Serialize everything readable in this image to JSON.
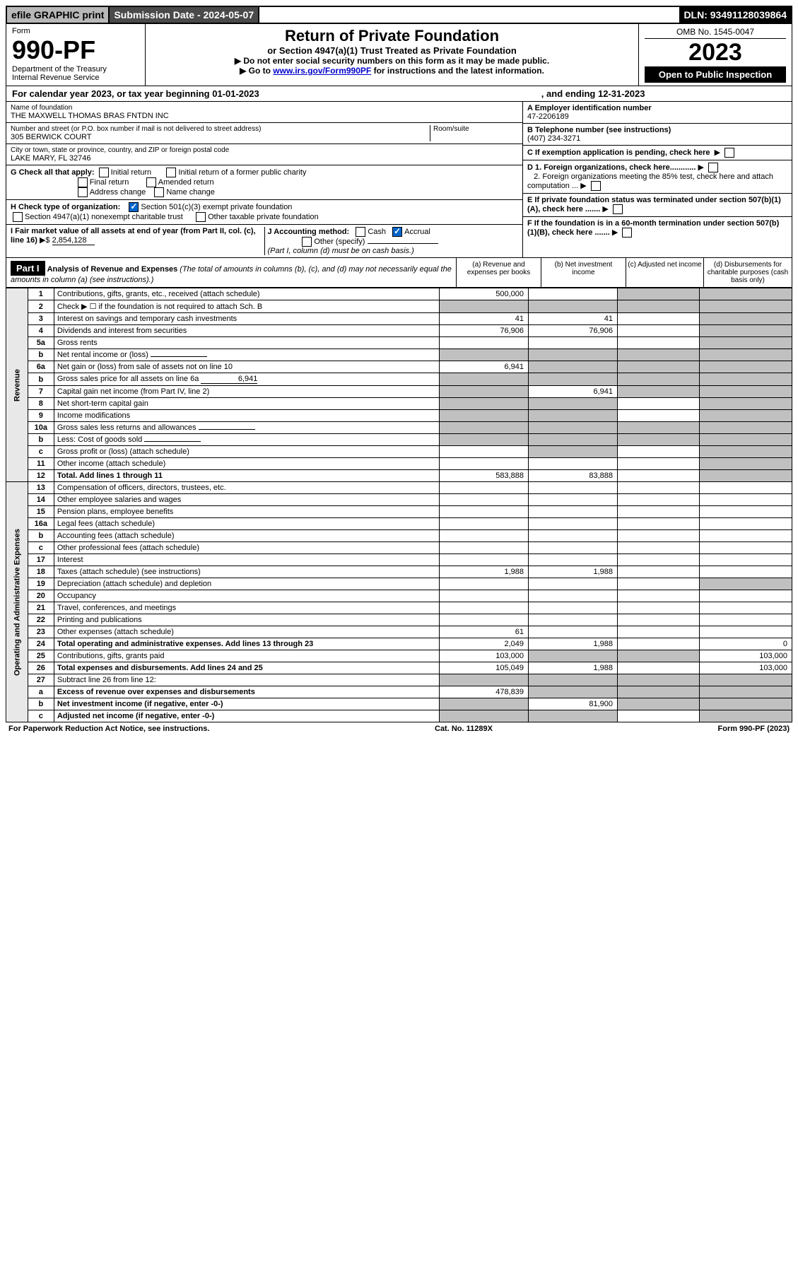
{
  "top": {
    "efile": "efile GRAPHIC print",
    "submission_label": "Submission Date - 2024-05-07",
    "dln": "DLN: 93491128039864"
  },
  "header": {
    "form_label": "Form",
    "form_number": "990-PF",
    "dept": "Department of the Treasury",
    "irs": "Internal Revenue Service",
    "title": "Return of Private Foundation",
    "subtitle": "or Section 4947(a)(1) Trust Treated as Private Foundation",
    "instr1": "▶ Do not enter social security numbers on this form as it may be made public.",
    "instr2_pre": "▶ Go to ",
    "instr2_link": "www.irs.gov/Form990PF",
    "instr2_post": " for instructions and the latest information.",
    "omb": "OMB No. 1545-0047",
    "year": "2023",
    "open": "Open to Public Inspection"
  },
  "cal_year": {
    "text_left": "For calendar year 2023, or tax year beginning 01-01-2023",
    "text_right": ", and ending 12-31-2023"
  },
  "info": {
    "name_label": "Name of foundation",
    "name": "THE MAXWELL THOMAS BRAS FNTDN INC",
    "addr_label": "Number and street (or P.O. box number if mail is not delivered to street address)",
    "addr": "305 BERWICK COURT",
    "room_label": "Room/suite",
    "city_label": "City or town, state or province, country, and ZIP or foreign postal code",
    "city": "LAKE MARY, FL  32746",
    "ein_label": "A Employer identification number",
    "ein": "47-2206189",
    "tel_label": "B Telephone number (see instructions)",
    "tel": "(407) 234-3271",
    "c_label": "C If exemption application is pending, check here",
    "g_label": "G Check all that apply:",
    "g_opts": [
      "Initial return",
      "Final return",
      "Address change",
      "Initial return of a former public charity",
      "Amended return",
      "Name change"
    ],
    "d1": "D 1. Foreign organizations, check here............",
    "d2": "2. Foreign organizations meeting the 85% test, check here and attach computation ...",
    "h_label": "H Check type of organization:",
    "h1": "Section 501(c)(3) exempt private foundation",
    "h2": "Section 4947(a)(1) nonexempt charitable trust",
    "h3": "Other taxable private foundation",
    "e_label": "E If private foundation status was terminated under section 507(b)(1)(A), check here .......",
    "i_label": "I Fair market value of all assets at end of year (from Part II, col. (c), line 16)",
    "i_val": "2,854,128",
    "j_label": "J Accounting method:",
    "j_cash": "Cash",
    "j_accrual": "Accrual",
    "j_other": "Other (specify)",
    "j_note": "(Part I, column (d) must be on cash basis.)",
    "f_label": "F If the foundation is in a 60-month termination under section 507(b)(1)(B), check here ......."
  },
  "part1": {
    "label": "Part I",
    "title": "Analysis of Revenue and Expenses",
    "note": "(The total of amounts in columns (b), (c), and (d) may not necessarily equal the amounts in column (a) (see instructions).)",
    "col_a": "(a) Revenue and expenses per books",
    "col_b": "(b) Net investment income",
    "col_c": "(c) Adjusted net income",
    "col_d": "(d) Disbursements for charitable purposes (cash basis only)"
  },
  "side_labels": {
    "revenue": "Revenue",
    "expenses": "Operating and Administrative Expenses"
  },
  "rows": [
    {
      "n": "1",
      "desc": "Contributions, gifts, grants, etc., received (attach schedule)",
      "a": "500,000",
      "b": "",
      "c": "",
      "d": "",
      "grey_b": false,
      "grey_c": true,
      "grey_d": true
    },
    {
      "n": "2",
      "desc": "Check ▶ ☐ if the foundation is not required to attach Sch. B",
      "a": "",
      "b": "",
      "c": "",
      "d": "",
      "grey_a": true,
      "grey_b": true,
      "grey_c": true,
      "grey_d": true
    },
    {
      "n": "3",
      "desc": "Interest on savings and temporary cash investments",
      "a": "41",
      "b": "41",
      "c": "",
      "d": "",
      "grey_d": true
    },
    {
      "n": "4",
      "desc": "Dividends and interest from securities",
      "a": "76,906",
      "b": "76,906",
      "c": "",
      "d": "",
      "grey_d": true
    },
    {
      "n": "5a",
      "desc": "Gross rents",
      "a": "",
      "b": "",
      "c": "",
      "d": "",
      "grey_d": true
    },
    {
      "n": "b",
      "desc": "Net rental income or (loss)",
      "a": "",
      "b": "",
      "c": "",
      "d": "",
      "grey_a": true,
      "grey_b": true,
      "grey_c": true,
      "grey_d": true,
      "inline_field": true
    },
    {
      "n": "6a",
      "desc": "Net gain or (loss) from sale of assets not on line 10",
      "a": "6,941",
      "b": "",
      "c": "",
      "d": "",
      "grey_b": true,
      "grey_c": true,
      "grey_d": true
    },
    {
      "n": "b",
      "desc": "Gross sales price for all assets on line 6a",
      "a": "",
      "b": "",
      "c": "",
      "d": "",
      "grey_a": true,
      "grey_b": true,
      "grey_c": true,
      "grey_d": true,
      "inline_val": "6,941"
    },
    {
      "n": "7",
      "desc": "Capital gain net income (from Part IV, line 2)",
      "a": "",
      "b": "6,941",
      "c": "",
      "d": "",
      "grey_a": true,
      "grey_c": true,
      "grey_d": true
    },
    {
      "n": "8",
      "desc": "Net short-term capital gain",
      "a": "",
      "b": "",
      "c": "",
      "d": "",
      "grey_a": true,
      "grey_b": true,
      "grey_d": true
    },
    {
      "n": "9",
      "desc": "Income modifications",
      "a": "",
      "b": "",
      "c": "",
      "d": "",
      "grey_a": true,
      "grey_b": true,
      "grey_d": true
    },
    {
      "n": "10a",
      "desc": "Gross sales less returns and allowances",
      "a": "",
      "b": "",
      "c": "",
      "d": "",
      "grey_a": true,
      "grey_b": true,
      "grey_c": true,
      "grey_d": true,
      "inline_field": true
    },
    {
      "n": "b",
      "desc": "Less: Cost of goods sold",
      "a": "",
      "b": "",
      "c": "",
      "d": "",
      "grey_a": true,
      "grey_b": true,
      "grey_c": true,
      "grey_d": true,
      "inline_field": true
    },
    {
      "n": "c",
      "desc": "Gross profit or (loss) (attach schedule)",
      "a": "",
      "b": "",
      "c": "",
      "d": "",
      "grey_b": true,
      "grey_d": true
    },
    {
      "n": "11",
      "desc": "Other income (attach schedule)",
      "a": "",
      "b": "",
      "c": "",
      "d": "",
      "grey_d": true
    },
    {
      "n": "12",
      "desc": "Total. Add lines 1 through 11",
      "a": "583,888",
      "b": "83,888",
      "c": "",
      "d": "",
      "bold": true,
      "grey_d": true
    },
    {
      "n": "13",
      "desc": "Compensation of officers, directors, trustees, etc.",
      "a": "",
      "b": "",
      "c": "",
      "d": ""
    },
    {
      "n": "14",
      "desc": "Other employee salaries and wages",
      "a": "",
      "b": "",
      "c": "",
      "d": ""
    },
    {
      "n": "15",
      "desc": "Pension plans, employee benefits",
      "a": "",
      "b": "",
      "c": "",
      "d": ""
    },
    {
      "n": "16a",
      "desc": "Legal fees (attach schedule)",
      "a": "",
      "b": "",
      "c": "",
      "d": ""
    },
    {
      "n": "b",
      "desc": "Accounting fees (attach schedule)",
      "a": "",
      "b": "",
      "c": "",
      "d": ""
    },
    {
      "n": "c",
      "desc": "Other professional fees (attach schedule)",
      "a": "",
      "b": "",
      "c": "",
      "d": ""
    },
    {
      "n": "17",
      "desc": "Interest",
      "a": "",
      "b": "",
      "c": "",
      "d": ""
    },
    {
      "n": "18",
      "desc": "Taxes (attach schedule) (see instructions)",
      "a": "1,988",
      "b": "1,988",
      "c": "",
      "d": ""
    },
    {
      "n": "19",
      "desc": "Depreciation (attach schedule) and depletion",
      "a": "",
      "b": "",
      "c": "",
      "d": "",
      "grey_d": true
    },
    {
      "n": "20",
      "desc": "Occupancy",
      "a": "",
      "b": "",
      "c": "",
      "d": ""
    },
    {
      "n": "21",
      "desc": "Travel, conferences, and meetings",
      "a": "",
      "b": "",
      "c": "",
      "d": ""
    },
    {
      "n": "22",
      "desc": "Printing and publications",
      "a": "",
      "b": "",
      "c": "",
      "d": ""
    },
    {
      "n": "23",
      "desc": "Other expenses (attach schedule)",
      "a": "61",
      "b": "",
      "c": "",
      "d": ""
    },
    {
      "n": "24",
      "desc": "Total operating and administrative expenses. Add lines 13 through 23",
      "a": "2,049",
      "b": "1,988",
      "c": "",
      "d": "0",
      "bold": true
    },
    {
      "n": "25",
      "desc": "Contributions, gifts, grants paid",
      "a": "103,000",
      "b": "",
      "c": "",
      "d": "103,000",
      "grey_b": true,
      "grey_c": true
    },
    {
      "n": "26",
      "desc": "Total expenses and disbursements. Add lines 24 and 25",
      "a": "105,049",
      "b": "1,988",
      "c": "",
      "d": "103,000",
      "bold": true
    },
    {
      "n": "27",
      "desc": "Subtract line 26 from line 12:",
      "a": "",
      "b": "",
      "c": "",
      "d": "",
      "grey_a": true,
      "grey_b": true,
      "grey_c": true,
      "grey_d": true
    },
    {
      "n": "a",
      "desc": "Excess of revenue over expenses and disbursements",
      "a": "478,839",
      "b": "",
      "c": "",
      "d": "",
      "bold": true,
      "grey_b": true,
      "grey_c": true,
      "grey_d": true
    },
    {
      "n": "b",
      "desc": "Net investment income (if negative, enter -0-)",
      "a": "",
      "b": "81,900",
      "c": "",
      "d": "",
      "bold": true,
      "grey_a": true,
      "grey_c": true,
      "grey_d": true
    },
    {
      "n": "c",
      "desc": "Adjusted net income (if negative, enter -0-)",
      "a": "",
      "b": "",
      "c": "",
      "d": "",
      "bold": true,
      "grey_a": true,
      "grey_b": true,
      "grey_d": true
    }
  ],
  "footer": {
    "left": "For Paperwork Reduction Act Notice, see instructions.",
    "mid": "Cat. No. 11289X",
    "right": "Form 990-PF (2023)"
  }
}
